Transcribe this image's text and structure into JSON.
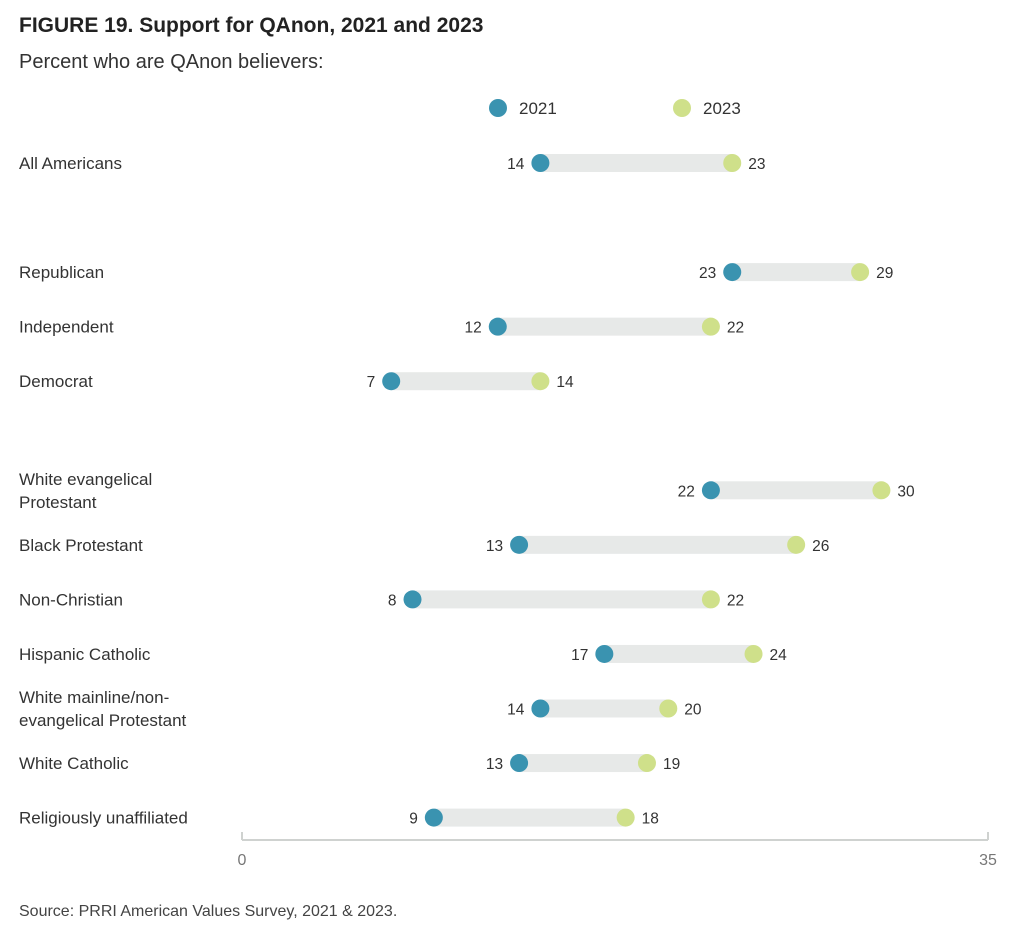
{
  "title": "FIGURE 19.  Support for QAnon, 2021 and 2023",
  "subtitle": "Percent who are QAnon believers:",
  "source": "Source: PRRI American Values Survey, 2021 & 2023.",
  "colors": {
    "series_2021": "#3a93b0",
    "series_2023": "#cfe08a",
    "bar": "#e7e9e8",
    "axis": "#cfd2d0"
  },
  "chart_data": {
    "type": "dumbbell",
    "xlim": [
      0,
      35
    ],
    "ticks": [
      "0",
      "35"
    ],
    "legend": {
      "placement": "top-center",
      "entries": [
        "2021",
        "2023"
      ]
    },
    "categories": [
      {
        "label": [
          "All Americans"
        ],
        "v2021": 14,
        "v2023": 23,
        "group": 0
      },
      {
        "label": [
          "Republican"
        ],
        "v2021": 23,
        "v2023": 29,
        "group": 1
      },
      {
        "label": [
          "Independent"
        ],
        "v2021": 12,
        "v2023": 22,
        "group": 1
      },
      {
        "label": [
          "Democrat"
        ],
        "v2021": 7,
        "v2023": 14,
        "group": 1
      },
      {
        "label": [
          "White evangelical",
          "Protestant"
        ],
        "v2021": 22,
        "v2023": 30,
        "group": 2
      },
      {
        "label": [
          "Black Protestant"
        ],
        "v2021": 13,
        "v2023": 26,
        "group": 2
      },
      {
        "label": [
          "Non-Christian"
        ],
        "v2021": 8,
        "v2023": 22,
        "group": 2
      },
      {
        "label": [
          "Hispanic Catholic"
        ],
        "v2021": 17,
        "v2023": 24,
        "group": 2
      },
      {
        "label": [
          "White mainline/non-",
          "evangelical Protestant"
        ],
        "v2021": 14,
        "v2023": 20,
        "group": 2
      },
      {
        "label": [
          "White Catholic"
        ],
        "v2021": 13,
        "v2023": 19,
        "group": 2
      },
      {
        "label": [
          "Religiously unaffiliated"
        ],
        "v2021": 9,
        "v2023": 18,
        "group": 2
      }
    ]
  }
}
